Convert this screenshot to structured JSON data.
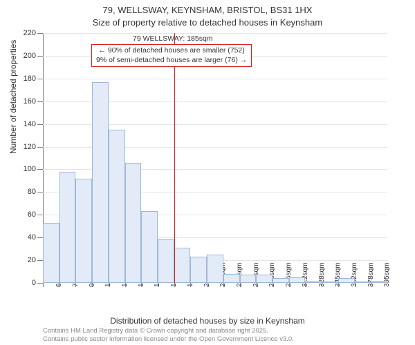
{
  "title": {
    "address": "79, WELLSWAY, KEYNSHAM, BRISTOL, BS31 1HX",
    "subtitle": "Size of property relative to detached houses in Keynsham"
  },
  "chart": {
    "type": "histogram",
    "ylabel": "Number of detached properties",
    "xlabel": "Distribution of detached houses by size in Keynsham",
    "ylim": [
      0,
      220
    ],
    "ytick_step": 20,
    "bar_fill": "#e2ebf7",
    "bar_stroke": "#9fb6d9",
    "grid_color": "#e5e5e5",
    "axis_color": "#808080",
    "background_color": "#ffffff",
    "marker": {
      "x_label_index": 8,
      "color": "#d22222",
      "title": "79 WELLSWAY: 185sqm",
      "line1": "← 90% of detached houses are smaller (752)",
      "line2": "9% of semi-detached houses are larger (76) →"
    },
    "bars": [
      {
        "label": "62sqm",
        "value": 53
      },
      {
        "label": "79sqm",
        "value": 98
      },
      {
        "label": "95sqm",
        "value": 92
      },
      {
        "label": "112sqm",
        "value": 177
      },
      {
        "label": "129sqm",
        "value": 135
      },
      {
        "label": "145sqm",
        "value": 106
      },
      {
        "label": "162sqm",
        "value": 63
      },
      {
        "label": "179sqm",
        "value": 38
      },
      {
        "label": "195sqm",
        "value": 31
      },
      {
        "label": "212sqm",
        "value": 23
      },
      {
        "label": "229sqm",
        "value": 25
      },
      {
        "label": "245sqm",
        "value": 8
      },
      {
        "label": "262sqm",
        "value": 7
      },
      {
        "label": "278sqm",
        "value": 7
      },
      {
        "label": "295sqm",
        "value": 4
      },
      {
        "label": "312sqm",
        "value": 5
      },
      {
        "label": "328sqm",
        "value": 2
      },
      {
        "label": "345sqm",
        "value": 0
      },
      {
        "label": "362sqm",
        "value": 4
      },
      {
        "label": "378sqm",
        "value": 0
      },
      {
        "label": "395sqm",
        "value": 2
      }
    ]
  },
  "footnote": {
    "line1": "Contains HM Land Registry data © Crown copyright and database right 2025.",
    "line2": "Contains public sector information licensed under the Open Government Licence v3.0."
  }
}
